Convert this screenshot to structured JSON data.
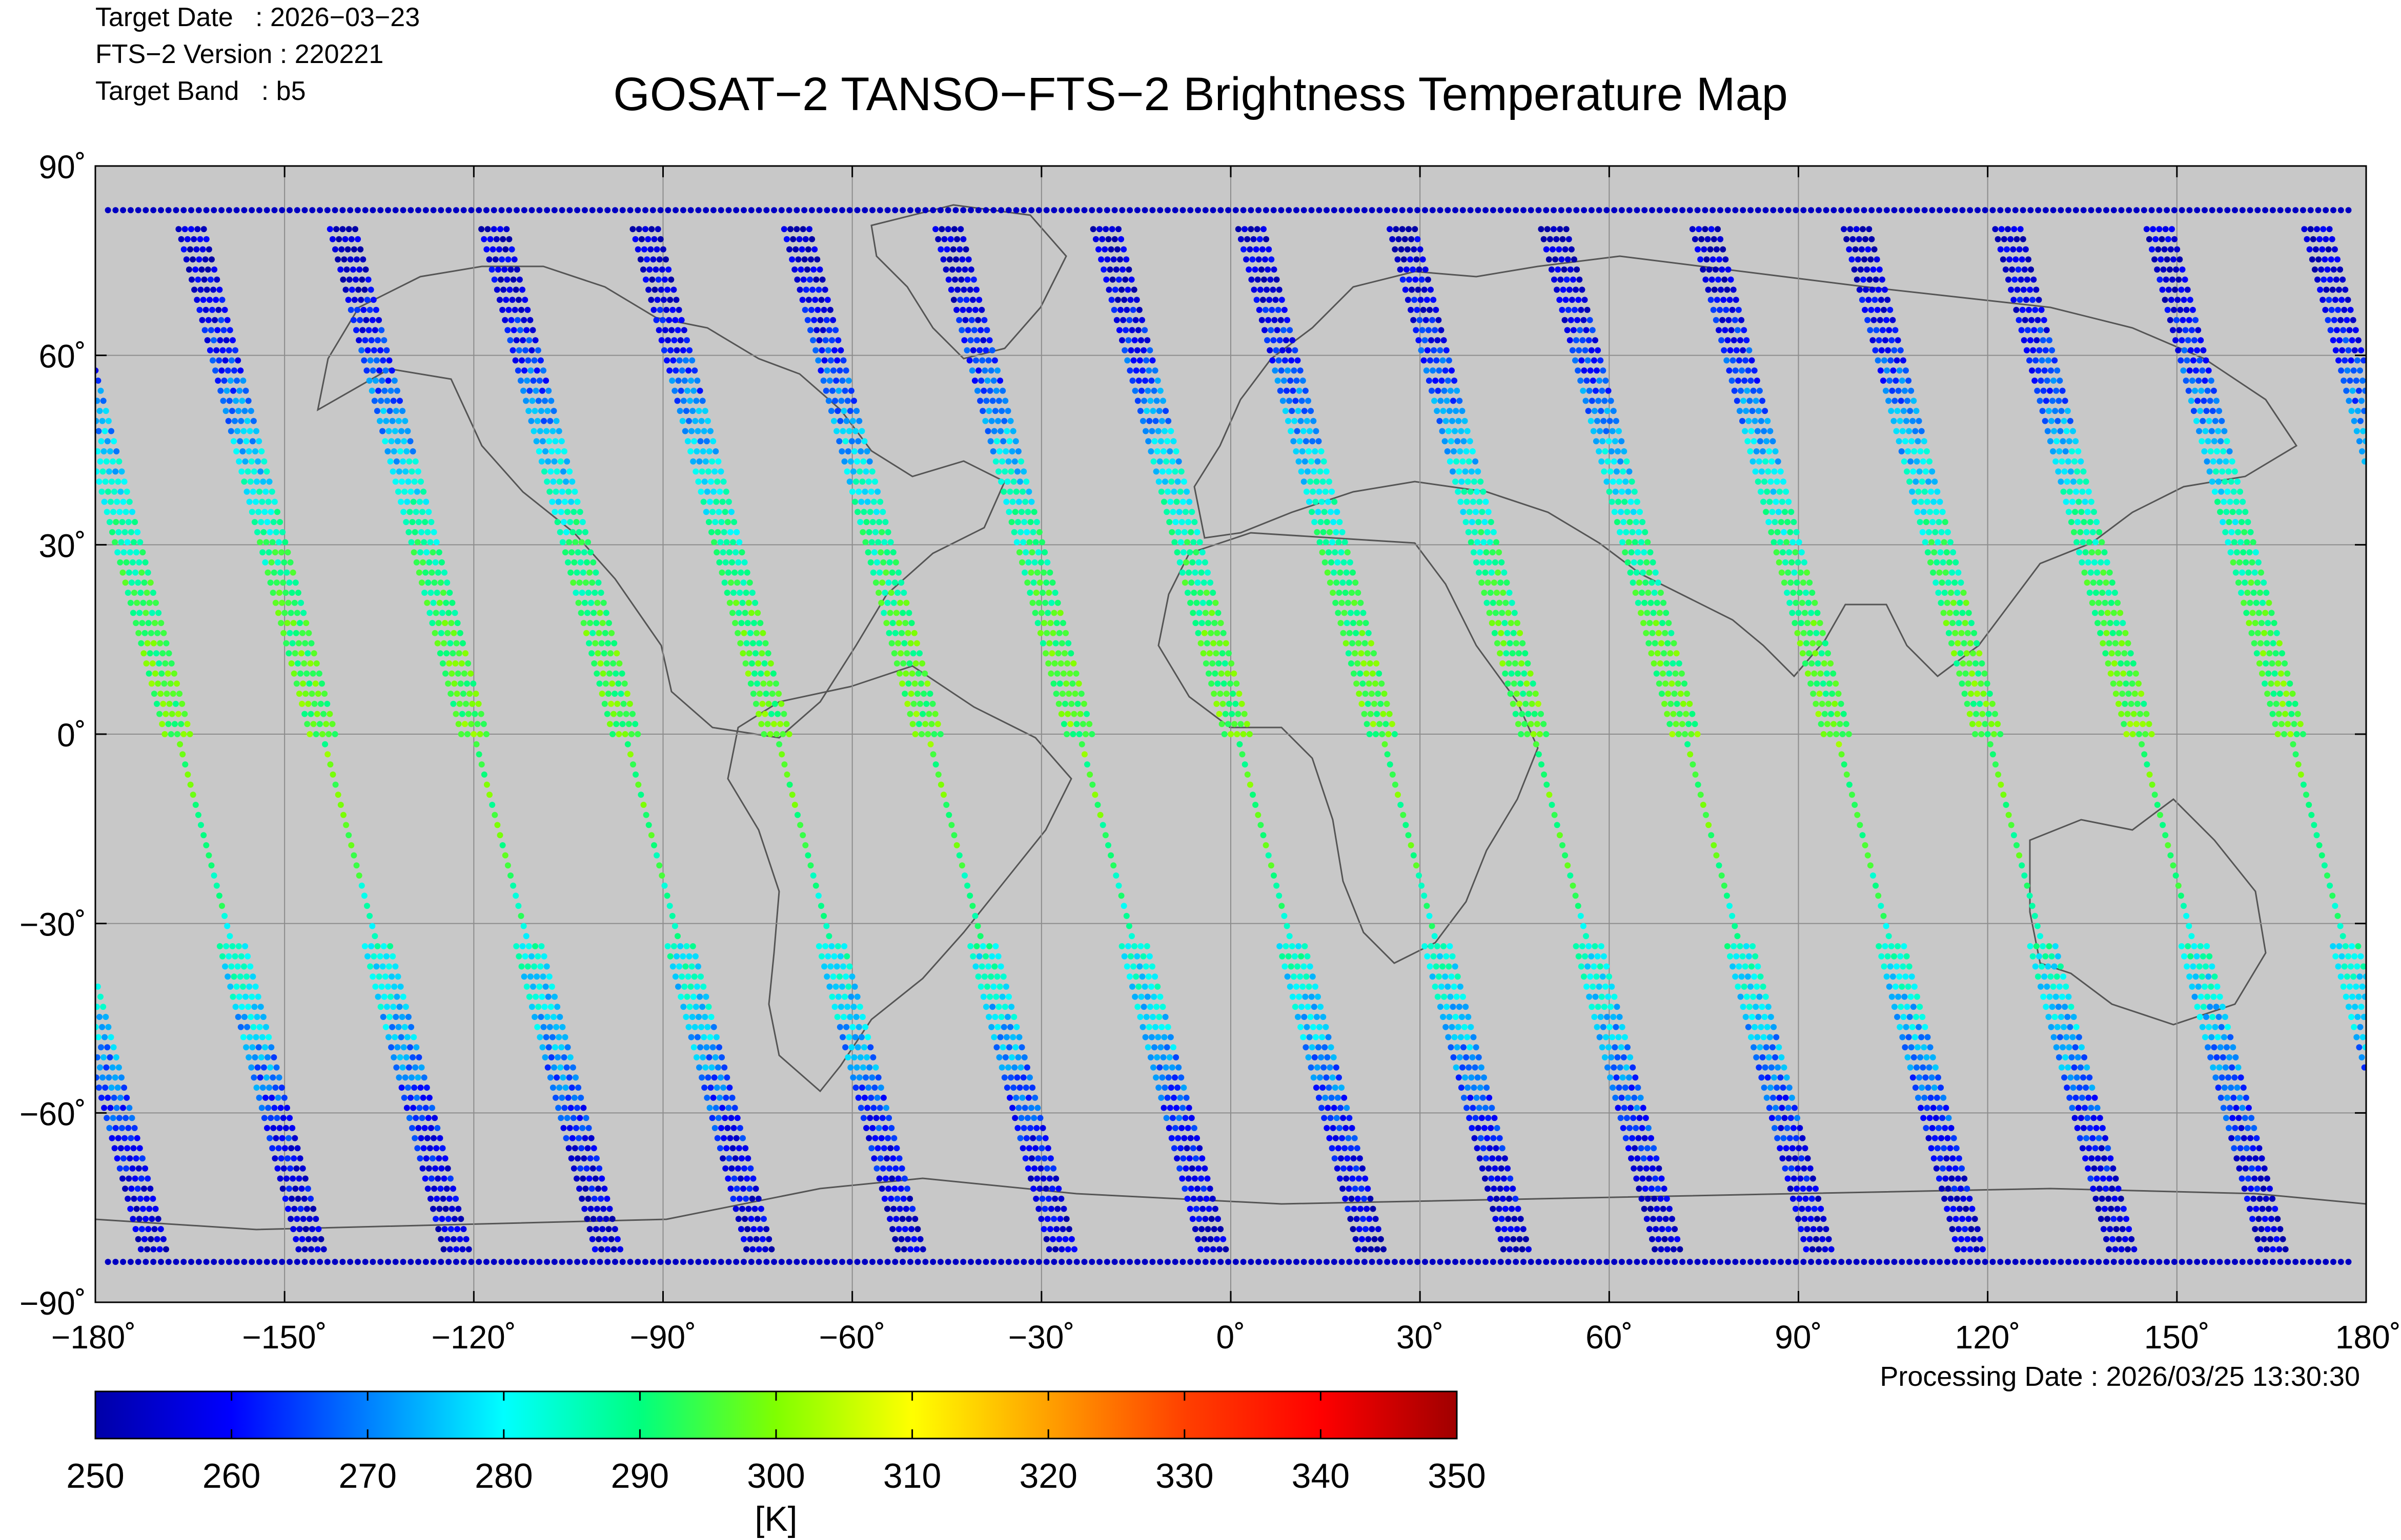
{
  "header": {
    "target_date": "Target Date   : 2026−03−23",
    "version": "FTS−2 Version : 220221",
    "band": "Target Band   : b5",
    "title": "GOSAT−2 TANSO−FTS−2 Brightness Temperature Map",
    "processing_date": "Processing Date : 2026/03/25 13:30:30"
  },
  "colors": {
    "ocean_land_background": "#c8c8c8",
    "grid": "#8c8c8c",
    "coastline": "#555555",
    "colormap": [
      "#0000a8",
      "#0000ff",
      "#0080ff",
      "#00ffff",
      "#00ff80",
      "#80ff00",
      "#ffff00",
      "#ffa000",
      "#ff4000",
      "#ff0000",
      "#a00000"
    ]
  },
  "chart_data": {
    "type": "scatter",
    "map_projection": "equirectangular",
    "title": "GOSAT−2 TANSO−FTS−2 Brightness Temperature Map",
    "xlim": [
      -180,
      180
    ],
    "ylim": [
      -90,
      90
    ],
    "x_ticks": [
      "−180˚",
      "−150˚",
      "−120˚",
      "−90˚",
      "−60˚",
      "−30˚",
      "0˚",
      "30˚",
      "60˚",
      "90˚",
      "120˚",
      "150˚",
      "180˚"
    ],
    "x_tick_values": [
      -180,
      -150,
      -120,
      -90,
      -60,
      -30,
      0,
      30,
      60,
      90,
      120,
      150,
      180
    ],
    "y_ticks": [
      "90˚",
      "60˚",
      "30˚",
      "0˚",
      "−30˚",
      "−60˚",
      "−90˚"
    ],
    "y_tick_values": [
      90,
      60,
      30,
      0,
      -30,
      -60,
      -90
    ],
    "grid": true,
    "colorbar": {
      "min": 250,
      "max": 350,
      "ticks": [
        "250",
        "260",
        "270",
        "280",
        "290",
        "300",
        "310",
        "320",
        "330",
        "340",
        "350"
      ],
      "tick_values": [
        250,
        260,
        270,
        280,
        290,
        300,
        310,
        320,
        330,
        340,
        350
      ],
      "unit": "[K]"
    },
    "swaths": {
      "equator_longitudes": [
        -167,
        -144,
        -120,
        -96,
        -72,
        -48,
        -24,
        1,
        24,
        48,
        72,
        96,
        120,
        144,
        168
      ],
      "slope_deg_lon_per_deg_lat": -0.26,
      "spot_spacing_deg": 1.6,
      "across_track_width_deg": 4.0,
      "temperature_profile_K": [
        {
          "lat": 83,
          "value": 253
        },
        {
          "lat": 70,
          "value": 256
        },
        {
          "lat": 60,
          "value": 263
        },
        {
          "lat": 45,
          "value": 276
        },
        {
          "lat": 30,
          "value": 288
        },
        {
          "lat": 15,
          "value": 294
        },
        {
          "lat": 0,
          "value": 296
        },
        {
          "lat": -15,
          "value": 294
        },
        {
          "lat": -30,
          "value": 286
        },
        {
          "lat": -45,
          "value": 276
        },
        {
          "lat": -55,
          "value": 268
        },
        {
          "lat": -65,
          "value": 260
        },
        {
          "lat": -84,
          "value": 253
        }
      ]
    }
  }
}
